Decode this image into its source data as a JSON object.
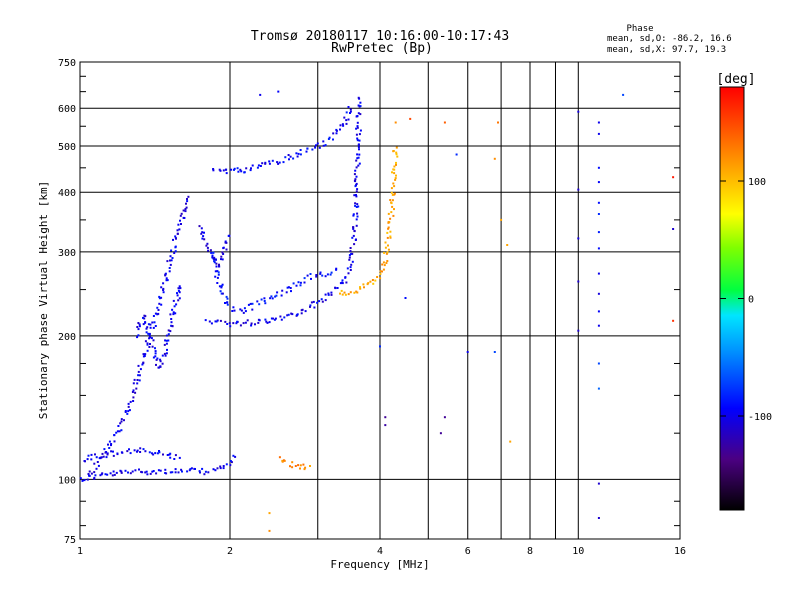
{
  "chart_data": {
    "type": "scatter",
    "title": "Tromsø 20180117 10:16:00-10:17:43",
    "subtitle": "RwPretec (Bp)",
    "xlabel": "Frequency [MHz]",
    "ylabel": "Stationary phase Virtual Height [km]",
    "x_scale": "log",
    "y_scale": "log",
    "xlim": [
      1,
      16
    ],
    "ylim": [
      75,
      750
    ],
    "x_ticks": [
      1,
      2,
      4,
      6,
      8,
      10,
      16
    ],
    "x_minor_ticks": [
      3,
      5,
      7,
      9
    ],
    "y_ticks": [
      75,
      100,
      200,
      300,
      400,
      500,
      600,
      750
    ],
    "y_minor_ticks": [
      80,
      90,
      125,
      150,
      175,
      250,
      350,
      450,
      550,
      650,
      700
    ],
    "grid": true,
    "info": {
      "heading": "Phase",
      "line1": "mean, sd,O: -86.2, 16.6",
      "line2": "mean, sd,X:  97.7, 19.3"
    },
    "colorbar": {
      "label": "[deg]",
      "min": -180,
      "max": 180,
      "ticks": [
        100,
        0,
        -100
      ],
      "colormap": "rainbow (black-purple-blue-cyan-green-yellow-red)"
    },
    "traces": [
      {
        "name": "",
        "phase": -100,
        "segments": [
          [
            1.0,
            100
          ],
          [
            1.1,
            102
          ],
          [
            1.2,
            103
          ],
          [
            1.3,
            104
          ],
          [
            1.4,
            104
          ],
          [
            1.5,
            104
          ],
          [
            1.6,
            104
          ],
          [
            1.7,
            104
          ],
          [
            1.8,
            104
          ],
          [
            1.9,
            105
          ],
          [
            2.0,
            108
          ],
          [
            2.05,
            112
          ]
        ]
      },
      {
        "name": "",
        "phase": -100,
        "segments": [
          [
            1.0,
            110
          ],
          [
            1.1,
            112
          ],
          [
            1.2,
            114
          ],
          [
            1.3,
            115
          ],
          [
            1.4,
            114
          ],
          [
            1.5,
            112
          ],
          [
            1.6,
            111
          ]
        ]
      },
      {
        "name": "",
        "phase": -100,
        "segments": [
          [
            1.05,
            102
          ],
          [
            1.15,
            118
          ],
          [
            1.25,
            140
          ],
          [
            1.3,
            160
          ],
          [
            1.35,
            185
          ],
          [
            1.4,
            210
          ],
          [
            1.45,
            240
          ],
          [
            1.5,
            275
          ],
          [
            1.55,
            310
          ],
          [
            1.6,
            350
          ],
          [
            1.65,
            395
          ]
        ]
      },
      {
        "name": "",
        "phase": -100,
        "segments": [
          [
            1.3,
            200
          ],
          [
            1.35,
            220
          ],
          [
            1.4,
            190
          ],
          [
            1.45,
            170
          ],
          [
            1.5,
            200
          ],
          [
            1.55,
            230
          ],
          [
            1.6,
            260
          ]
        ]
      },
      {
        "name": "",
        "phase": -100,
        "segments": [
          [
            1.8,
            215
          ],
          [
            2.0,
            212
          ],
          [
            2.2,
            213
          ],
          [
            2.4,
            216
          ],
          [
            2.6,
            220
          ],
          [
            2.8,
            226
          ],
          [
            3.0,
            234
          ],
          [
            3.2,
            245
          ],
          [
            3.4,
            262
          ],
          [
            3.5,
            285
          ],
          [
            3.55,
            320
          ],
          [
            3.58,
            380
          ],
          [
            3.6,
            450
          ],
          [
            3.62,
            540
          ],
          [
            3.63,
            640
          ]
        ]
      },
      {
        "name": "",
        "phase": -90,
        "segments": [
          [
            1.85,
            300
          ],
          [
            1.9,
            260
          ],
          [
            1.95,
            240
          ],
          [
            2.0,
            230
          ],
          [
            2.1,
            225
          ],
          [
            2.3,
            235
          ],
          [
            2.5,
            245
          ],
          [
            2.7,
            255
          ],
          [
            2.9,
            265
          ],
          [
            3.1,
            270
          ],
          [
            3.3,
            275
          ]
        ]
      },
      {
        "name": "",
        "phase": -95,
        "segments": [
          [
            1.85,
            450
          ],
          [
            2.0,
            440
          ],
          [
            2.2,
            448
          ],
          [
            2.4,
            460
          ],
          [
            2.6,
            472
          ],
          [
            2.8,
            485
          ],
          [
            3.0,
            500
          ],
          [
            3.2,
            520
          ],
          [
            3.4,
            560
          ],
          [
            3.5,
            610
          ]
        ]
      },
      {
        "name": "",
        "phase": -105,
        "segments": [
          [
            1.75,
            340
          ],
          [
            1.8,
            310
          ],
          [
            1.85,
            290
          ],
          [
            1.9,
            280
          ],
          [
            1.95,
            300
          ],
          [
            2.0,
            330
          ]
        ]
      },
      {
        "name": "",
        "phase": 110,
        "segments": [
          [
            3.3,
            245
          ],
          [
            3.5,
            248
          ],
          [
            3.7,
            252
          ],
          [
            3.9,
            260
          ],
          [
            4.0,
            270
          ],
          [
            4.1,
            285
          ],
          [
            4.15,
            310
          ],
          [
            4.2,
            350
          ],
          [
            4.25,
            400
          ],
          [
            4.28,
            460
          ],
          [
            4.3,
            500
          ]
        ]
      },
      {
        "name": "",
        "phase": 120,
        "segments": [
          [
            2.5,
            110
          ],
          [
            2.6,
            108
          ],
          [
            2.7,
            107
          ],
          [
            2.8,
            106
          ],
          [
            2.9,
            106
          ]
        ]
      }
    ],
    "scattered_points": [
      [
        2.3,
        640,
        -100
      ],
      [
        2.5,
        650,
        -95
      ],
      [
        4.3,
        560,
        120
      ],
      [
        4.6,
        570,
        150
      ],
      [
        5.4,
        560,
        140
      ],
      [
        6.9,
        560,
        130
      ],
      [
        6.8,
        470,
        120
      ],
      [
        7.0,
        350,
        110
      ],
      [
        7.2,
        310,
        110
      ],
      [
        5.7,
        480,
        -80
      ],
      [
        6.0,
        185,
        -100
      ],
      [
        6.8,
        185,
        -70
      ],
      [
        7.3,
        120,
        110
      ],
      [
        4.0,
        190,
        -80
      ],
      [
        4.5,
        240,
        -90
      ],
      [
        10.0,
        590,
        -105
      ],
      [
        10.0,
        405,
        -110
      ],
      [
        10.0,
        320,
        -105
      ],
      [
        10.0,
        260,
        -110
      ],
      [
        10.0,
        205,
        -110
      ],
      [
        11.0,
        560,
        -100
      ],
      [
        11.0,
        530,
        -100
      ],
      [
        11.0,
        450,
        -90
      ],
      [
        11.0,
        420,
        -95
      ],
      [
        11.0,
        380,
        -90
      ],
      [
        11.0,
        360,
        -80
      ],
      [
        11.0,
        330,
        -85
      ],
      [
        11.0,
        305,
        -90
      ],
      [
        11.0,
        270,
        -100
      ],
      [
        11.0,
        245,
        -105
      ],
      [
        11.0,
        225,
        -95
      ],
      [
        11.0,
        210,
        -100
      ],
      [
        11.0,
        175,
        -70
      ],
      [
        11.0,
        155,
        -60
      ],
      [
        11.0,
        98,
        -110
      ],
      [
        11.0,
        83,
        -110
      ],
      [
        12.3,
        640,
        -70
      ],
      [
        15.5,
        430,
        170
      ],
      [
        15.5,
        335,
        -110
      ],
      [
        15.5,
        215,
        160
      ],
      [
        4.1,
        135,
        -130
      ],
      [
        4.1,
        130,
        -125
      ],
      [
        5.4,
        135,
        -130
      ],
      [
        5.3,
        125,
        -130
      ],
      [
        2.4,
        78,
        120
      ],
      [
        2.4,
        85,
        110
      ]
    ]
  }
}
